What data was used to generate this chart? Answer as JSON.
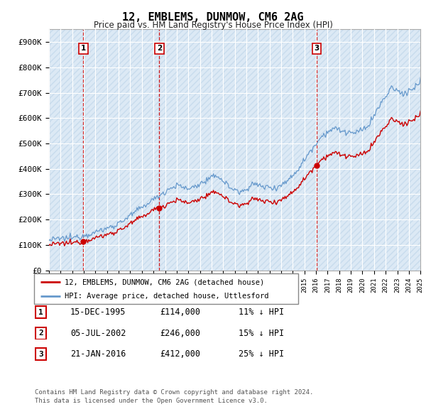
{
  "title": "12, EMBLEMS, DUNMOW, CM6 2AG",
  "subtitle": "Price paid vs. HM Land Registry's House Price Index (HPI)",
  "ylim": [
    0,
    950000
  ],
  "yticks": [
    0,
    100000,
    200000,
    300000,
    400000,
    500000,
    600000,
    700000,
    800000,
    900000
  ],
  "ytick_labels": [
    "£0",
    "£100K",
    "£200K",
    "£300K",
    "£400K",
    "£500K",
    "£600K",
    "£700K",
    "£800K",
    "£900K"
  ],
  "plot_bg_color": "#dce9f5",
  "hatch_color": "#c8dced",
  "grid_color": "#ffffff",
  "hpi_color": "#6699cc",
  "price_color": "#cc0000",
  "vline_color": "#cc0000",
  "sale_points": [
    {
      "year": 1995.96,
      "price": 114000,
      "label": "1"
    },
    {
      "year": 2002.51,
      "price": 246000,
      "label": "2"
    },
    {
      "year": 2016.06,
      "price": 412000,
      "label": "3"
    }
  ],
  "legend_entries": [
    "12, EMBLEMS, DUNMOW, CM6 2AG (detached house)",
    "HPI: Average price, detached house, Uttlesford"
  ],
  "table_rows": [
    {
      "num": "1",
      "date": "15-DEC-1995",
      "price": "£114,000",
      "pct": "11% ↓ HPI"
    },
    {
      "num": "2",
      "date": "05-JUL-2002",
      "price": "£246,000",
      "pct": "15% ↓ HPI"
    },
    {
      "num": "3",
      "date": "21-JAN-2016",
      "price": "£412,000",
      "pct": "25% ↓ HPI"
    }
  ],
  "footnote": "Contains HM Land Registry data © Crown copyright and database right 2024.\nThis data is licensed under the Open Government Licence v3.0.",
  "xmin": 1993,
  "xmax": 2025
}
